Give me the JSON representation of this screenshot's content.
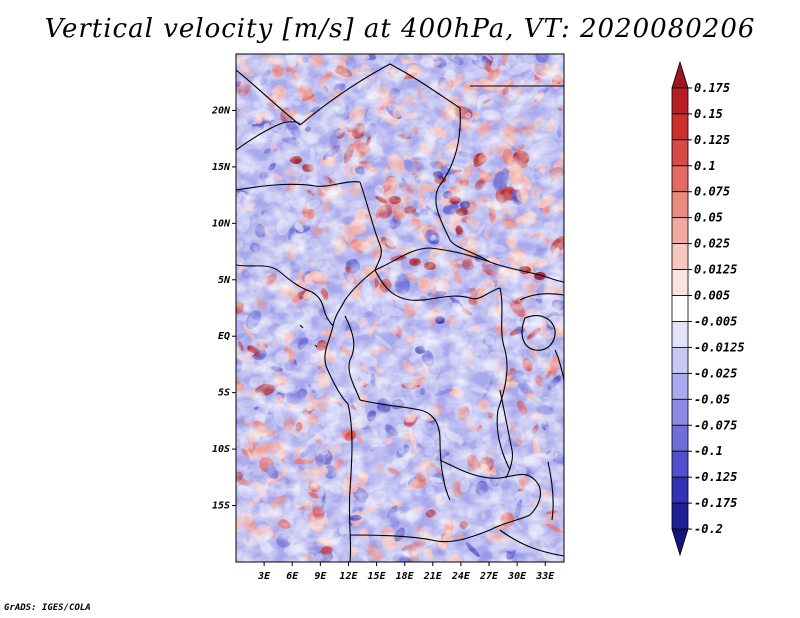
{
  "title": "Vertical velocity [m/s] at 400hPa, VT: 2020080206",
  "credit": "GrADS: IGES/COLA",
  "map": {
    "lat_labels": [
      "20N",
      "15N",
      "10N",
      "5N",
      "EQ",
      "5S",
      "10S",
      "15S"
    ],
    "lat_values": [
      20,
      15,
      10,
      5,
      0,
      -5,
      -10,
      -15
    ],
    "lon_labels": [
      "3E",
      "6E",
      "9E",
      "12E",
      "15E",
      "18E",
      "21E",
      "24E",
      "27E",
      "30E",
      "33E"
    ],
    "lon_values": [
      3,
      6,
      9,
      12,
      15,
      18,
      21,
      24,
      27,
      30,
      33
    ],
    "lat_range": [
      -20,
      25
    ],
    "lon_range": [
      0,
      35
    ]
  },
  "colorbar": {
    "labels": [
      "0.175",
      "0.15",
      "0.125",
      "0.1",
      "0.075",
      "0.05",
      "0.025",
      "0.0125",
      "0.005",
      "-0.005",
      "-0.0125",
      "-0.025",
      "-0.05",
      "-0.075",
      "-0.1",
      "-0.125",
      "-0.175",
      "-0.2"
    ],
    "colors": [
      "#a0141c",
      "#b81e24",
      "#cc302e",
      "#d94a44",
      "#e26a62",
      "#eb8a80",
      "#f2aaa0",
      "#f7c8c0",
      "#fbe4e0",
      "#ffffff",
      "#e2e2fa",
      "#c8c8f4",
      "#aaaaee",
      "#8c8ce6",
      "#6e6edc",
      "#5050cc",
      "#3232b4",
      "#1e1e96",
      "#14147a"
    ]
  },
  "colors": {
    "positive": "#e8625a",
    "negative": "#6a6ae0",
    "border": "#000000"
  }
}
